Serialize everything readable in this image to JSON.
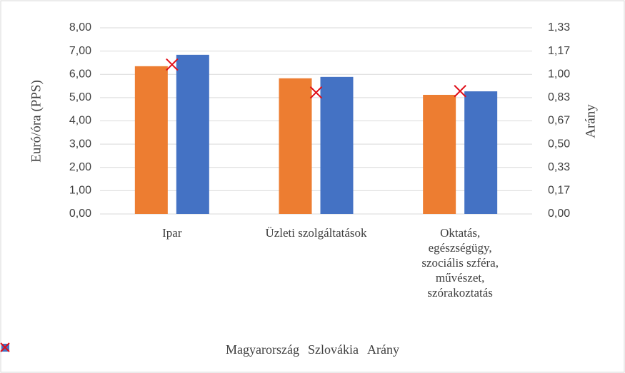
{
  "chart_data": {
    "type": "bar",
    "ylabel": "Euró/óra (PPS)",
    "y2label": "Arány",
    "categories": [
      "Ipar",
      "Üzleti szolgáltatások",
      "Oktatás, egészségügy, szociális szféra, művészet, szórakoztatás"
    ],
    "series": [
      {
        "name": "Magyarország",
        "color": "#ed7d31",
        "type": "bar",
        "values": [
          6.35,
          5.83,
          5.12
        ]
      },
      {
        "name": "Szlovákia",
        "color": "#4472c4",
        "type": "bar",
        "values": [
          6.84,
          5.89,
          5.27
        ]
      },
      {
        "name": "Arány",
        "color": "#e0101a",
        "type": "marker",
        "axis": "y2",
        "values": [
          1.07,
          0.87,
          0.88
        ]
      }
    ],
    "ylim": [
      0,
      8
    ],
    "yticks": [
      {
        "value": 0,
        "label": "0,00"
      },
      {
        "value": 1,
        "label": "1,00"
      },
      {
        "value": 2,
        "label": "2,00"
      },
      {
        "value": 3,
        "label": "3,00"
      },
      {
        "value": 4,
        "label": "4,00"
      },
      {
        "value": 5,
        "label": "5,00"
      },
      {
        "value": 6,
        "label": "6,00"
      },
      {
        "value": 7,
        "label": "7,00"
      },
      {
        "value": 8,
        "label": "8,00"
      }
    ],
    "y2lim": [
      0,
      1.3333
    ],
    "y2ticks": [
      {
        "value": 0,
        "label": "0,00"
      },
      {
        "value": 0.1667,
        "label": "0,17"
      },
      {
        "value": 0.3333,
        "label": "0,33"
      },
      {
        "value": 0.5,
        "label": "0,50"
      },
      {
        "value": 0.6667,
        "label": "0,67"
      },
      {
        "value": 0.8333,
        "label": "0,83"
      },
      {
        "value": 1,
        "label": "1,00"
      },
      {
        "value": 1.1667,
        "label": "1,17"
      },
      {
        "value": 1.3333,
        "label": "1,33"
      }
    ],
    "grid": true,
    "legend": "bottom"
  }
}
